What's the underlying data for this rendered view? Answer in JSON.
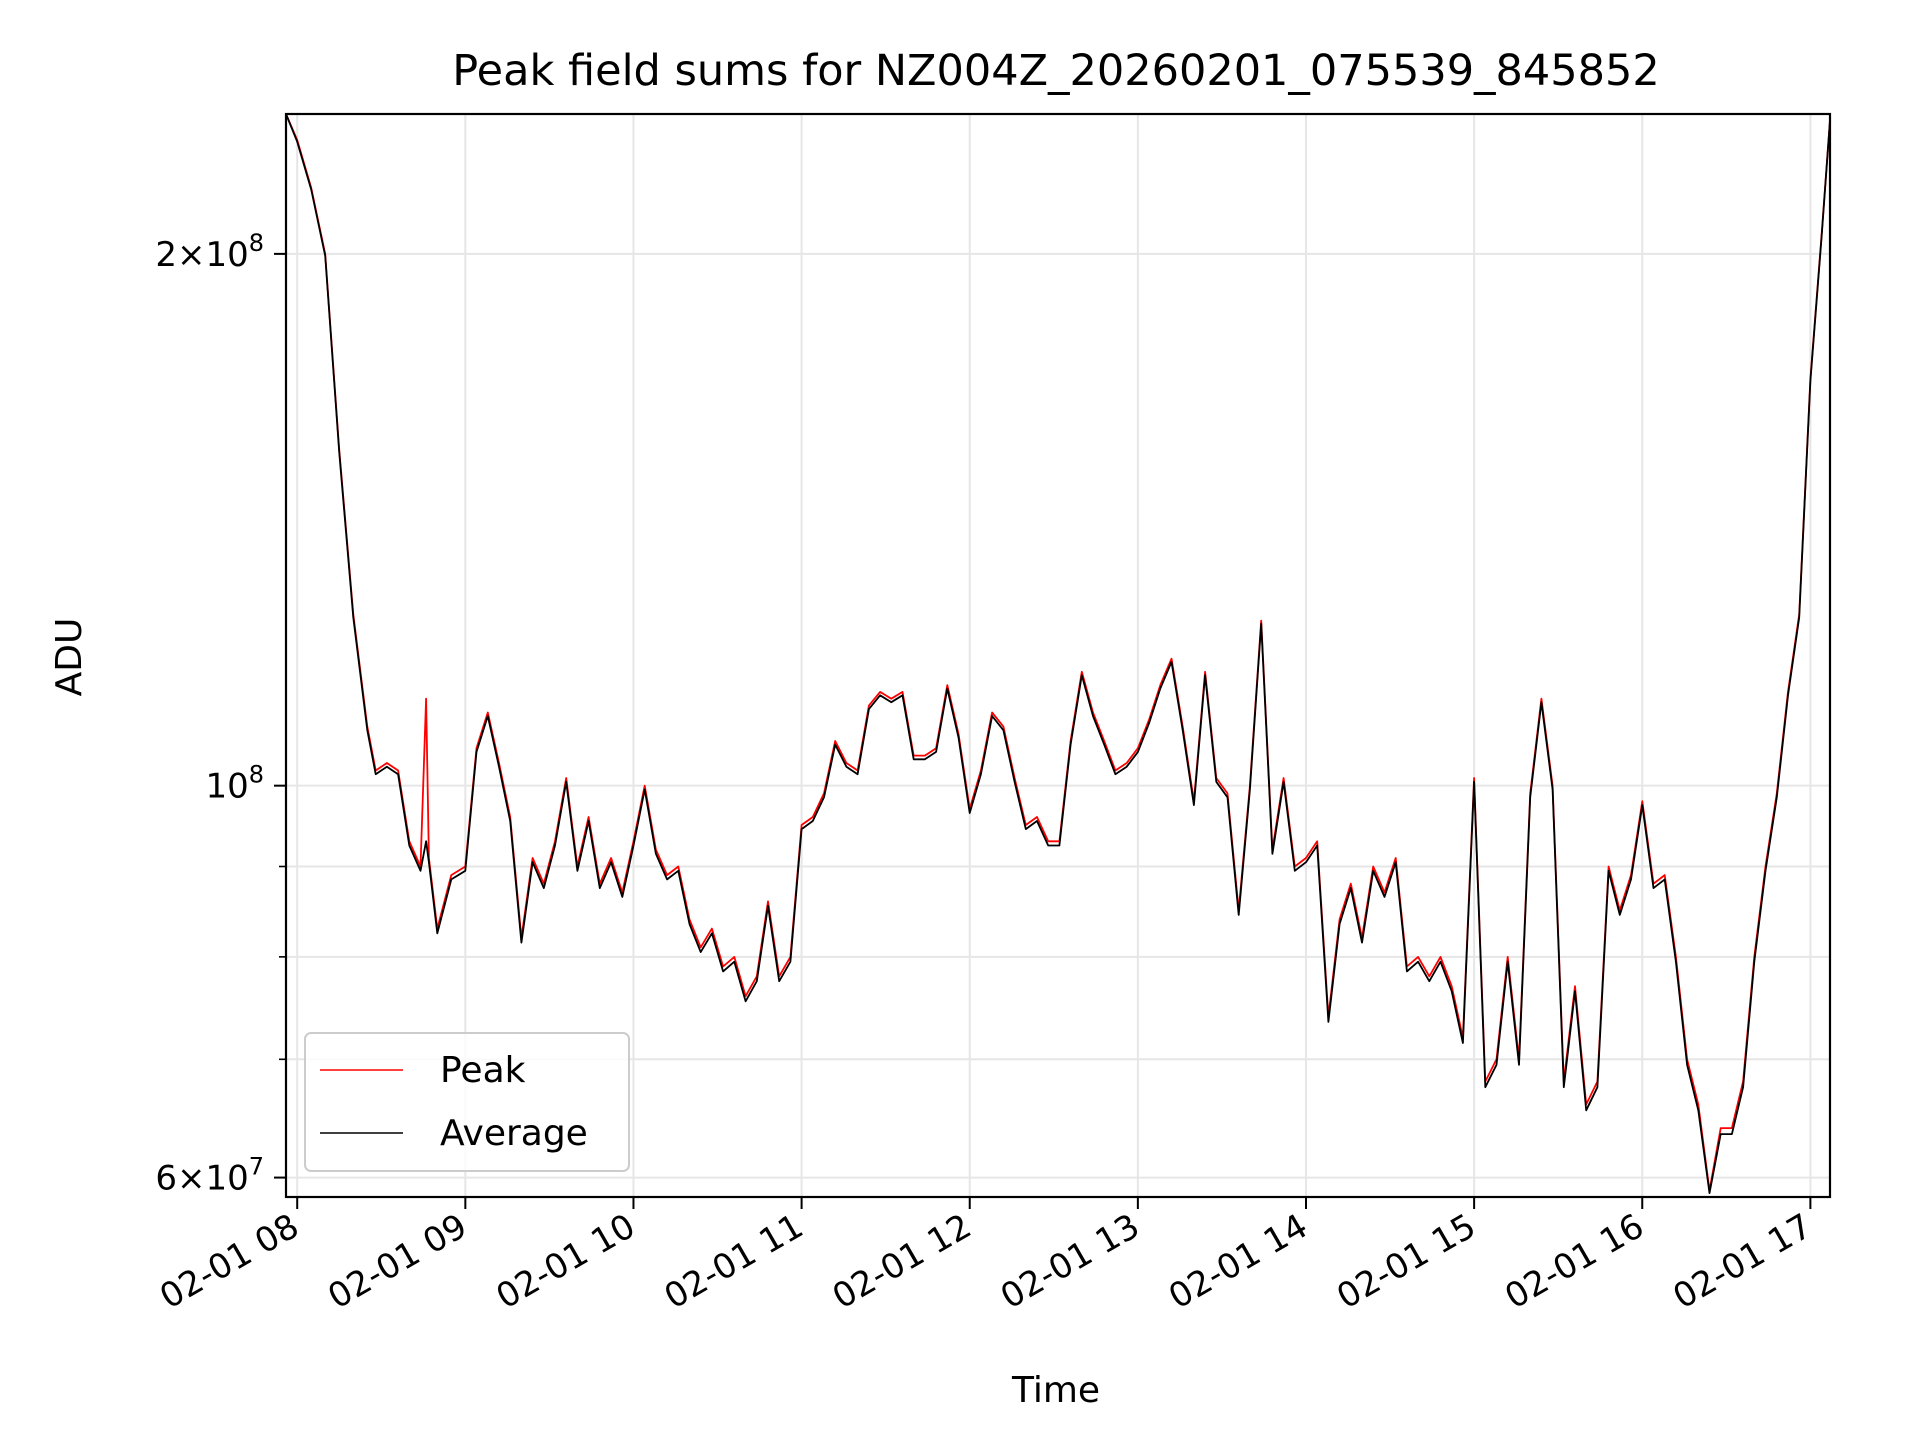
{
  "chart_data": {
    "type": "line",
    "title": "Peak field sums for NZ004Z_20260201_075539_845852",
    "xlabel": "Time",
    "ylabel": "ADU",
    "yscale": "log",
    "xlim": [
      "02-01 07:56",
      "02-01 17:07"
    ],
    "ylim": [
      58500000,
      240000000
    ],
    "x_ticks": [
      "02-01 08",
      "02-01 09",
      "02-01 10",
      "02-01 11",
      "02-01 12",
      "02-01 13",
      "02-01 14",
      "02-01 15",
      "02-01 16",
      "02-01 17"
    ],
    "y_ticks": [
      {
        "value": 60000000,
        "base": "6",
        "exp": "7"
      },
      {
        "value": 100000000,
        "base": "",
        "exp": "8"
      },
      {
        "value": 200000000,
        "base": "2",
        "exp": "8"
      }
    ],
    "y_minor_ticks": [
      70000000,
      80000000,
      90000000
    ],
    "grid": true,
    "legend": "lower-left",
    "colors": {
      "peak": "#ff0000",
      "average": "#000000",
      "grid": "#e6e6e6"
    },
    "series": [
      {
        "name": "Peak",
        "key": "peak",
        "x": [
          "02-01 07:56",
          "02-01 08:00",
          "02-01 08:05",
          "02-01 08:10",
          "02-01 08:15",
          "02-01 08:20",
          "02-01 08:25",
          "02-01 08:28",
          "02-01 08:32",
          "02-01 08:36",
          "02-01 08:40",
          "02-01 08:44",
          "02-01 08:46",
          "02-01 08:47",
          "02-01 08:50",
          "02-01 08:55",
          "02-01 09:00",
          "02-01 09:04",
          "02-01 09:08",
          "02-01 09:12",
          "02-01 09:16",
          "02-01 09:20",
          "02-01 09:24",
          "02-01 09:28",
          "02-01 09:32",
          "02-01 09:36",
          "02-01 09:40",
          "02-01 09:44",
          "02-01 09:48",
          "02-01 09:52",
          "02-01 09:56",
          "02-01 10:00",
          "02-01 10:04",
          "02-01 10:08",
          "02-01 10:12",
          "02-01 10:16",
          "02-01 10:20",
          "02-01 10:24",
          "02-01 10:28",
          "02-01 10:32",
          "02-01 10:36",
          "02-01 10:40",
          "02-01 10:44",
          "02-01 10:48",
          "02-01 10:52",
          "02-01 10:56",
          "02-01 11:00",
          "02-01 11:04",
          "02-01 11:08",
          "02-01 11:12",
          "02-01 11:16",
          "02-01 11:20",
          "02-01 11:24",
          "02-01 11:28",
          "02-01 11:32",
          "02-01 11:36",
          "02-01 11:40",
          "02-01 11:44",
          "02-01 11:48",
          "02-01 11:52",
          "02-01 11:56",
          "02-01 12:00",
          "02-01 12:04",
          "02-01 12:08",
          "02-01 12:12",
          "02-01 12:16",
          "02-01 12:20",
          "02-01 12:24",
          "02-01 12:28",
          "02-01 12:32",
          "02-01 12:36",
          "02-01 12:40",
          "02-01 12:44",
          "02-01 12:48",
          "02-01 12:52",
          "02-01 12:56",
          "02-01 13:00",
          "02-01 13:04",
          "02-01 13:08",
          "02-01 13:12",
          "02-01 13:16",
          "02-01 13:20",
          "02-01 13:24",
          "02-01 13:28",
          "02-01 13:32",
          "02-01 13:36",
          "02-01 13:40",
          "02-01 13:44",
          "02-01 13:48",
          "02-01 13:52",
          "02-01 13:56",
          "02-01 14:00",
          "02-01 14:04",
          "02-01 14:08",
          "02-01 14:12",
          "02-01 14:16",
          "02-01 14:20",
          "02-01 14:24",
          "02-01 14:28",
          "02-01 14:32",
          "02-01 14:36",
          "02-01 14:40",
          "02-01 14:44",
          "02-01 14:48",
          "02-01 14:52",
          "02-01 14:56",
          "02-01 15:00",
          "02-01 15:04",
          "02-01 15:08",
          "02-01 15:12",
          "02-01 15:16",
          "02-01 15:20",
          "02-01 15:24",
          "02-01 15:28",
          "02-01 15:32",
          "02-01 15:36",
          "02-01 15:40",
          "02-01 15:44",
          "02-01 15:48",
          "02-01 15:52",
          "02-01 15:56",
          "02-01 16:00",
          "02-01 16:04",
          "02-01 16:08",
          "02-01 16:12",
          "02-01 16:16",
          "02-01 16:20",
          "02-01 16:24",
          "02-01 16:28",
          "02-01 16:32",
          "02-01 16:36",
          "02-01 16:40",
          "02-01 16:44",
          "02-01 16:48",
          "02-01 16:52",
          "02-01 16:56",
          "02-01 17:00",
          "02-01 17:04",
          "02-01 17:07"
        ],
        "y": [
          240000000,
          232000000,
          218000000,
          200000000,
          155000000,
          125000000,
          108000000,
          102000000,
          103000000,
          102000000,
          93000000,
          90000000,
          112000000,
          91000000,
          83000000,
          89000000,
          90000000,
          105000000,
          110000000,
          103000000,
          96000000,
          82000000,
          91000000,
          88000000,
          93000000,
          101000000,
          90000000,
          96000000,
          88000000,
          91000000,
          87000000,
          93000000,
          100000000,
          92000000,
          89000000,
          90000000,
          84000000,
          81000000,
          83000000,
          79000000,
          80000000,
          76000000,
          78000000,
          86000000,
          78000000,
          80000000,
          95000000,
          96000000,
          99000000,
          106000000,
          103000000,
          102000000,
          111000000,
          113000000,
          112000000,
          113000000,
          104000000,
          104000000,
          105000000,
          114000000,
          107000000,
          97000000,
          102000000,
          110000000,
          108000000,
          101000000,
          95000000,
          96000000,
          93000000,
          93000000,
          106000000,
          116000000,
          110000000,
          106000000,
          102000000,
          103000000,
          105000000,
          109000000,
          114000000,
          118000000,
          108000000,
          98000000,
          116000000,
          101000000,
          99000000,
          85000000,
          100000000,
          124000000,
          92000000,
          101000000,
          90000000,
          91000000,
          93000000,
          74000000,
          84000000,
          88000000,
          82000000,
          90000000,
          87000000,
          91000000,
          79000000,
          80000000,
          78000000,
          80000000,
          77000000,
          72000000,
          101000000,
          68000000,
          70000000,
          80000000,
          70000000,
          99000000,
          112000000,
          100000000,
          68000000,
          77000000,
          66000000,
          68000000,
          90000000,
          85000000,
          89000000,
          98000000,
          88000000,
          89000000,
          80000000,
          70000000,
          66000000,
          59000000,
          64000000,
          64000000,
          68000000,
          80000000,
          90000000,
          99000000,
          113000000,
          125000000,
          170000000,
          205000000,
          238000000
        ]
      },
      {
        "name": "Average",
        "key": "average",
        "x": [
          "02-01 07:56",
          "02-01 08:00",
          "02-01 08:05",
          "02-01 08:10",
          "02-01 08:15",
          "02-01 08:20",
          "02-01 08:25",
          "02-01 08:28",
          "02-01 08:32",
          "02-01 08:36",
          "02-01 08:40",
          "02-01 08:44",
          "02-01 08:46",
          "02-01 08:47",
          "02-01 08:50",
          "02-01 08:55",
          "02-01 09:00",
          "02-01 09:04",
          "02-01 09:08",
          "02-01 09:12",
          "02-01 09:16",
          "02-01 09:20",
          "02-01 09:24",
          "02-01 09:28",
          "02-01 09:32",
          "02-01 09:36",
          "02-01 09:40",
          "02-01 09:44",
          "02-01 09:48",
          "02-01 09:52",
          "02-01 09:56",
          "02-01 10:00",
          "02-01 10:04",
          "02-01 10:08",
          "02-01 10:12",
          "02-01 10:16",
          "02-01 10:20",
          "02-01 10:24",
          "02-01 10:28",
          "02-01 10:32",
          "02-01 10:36",
          "02-01 10:40",
          "02-01 10:44",
          "02-01 10:48",
          "02-01 10:52",
          "02-01 10:56",
          "02-01 11:00",
          "02-01 11:04",
          "02-01 11:08",
          "02-01 11:12",
          "02-01 11:16",
          "02-01 11:20",
          "02-01 11:24",
          "02-01 11:28",
          "02-01 11:32",
          "02-01 11:36",
          "02-01 11:40",
          "02-01 11:44",
          "02-01 11:48",
          "02-01 11:52",
          "02-01 11:56",
          "02-01 12:00",
          "02-01 12:04",
          "02-01 12:08",
          "02-01 12:12",
          "02-01 12:16",
          "02-01 12:20",
          "02-01 12:24",
          "02-01 12:28",
          "02-01 12:32",
          "02-01 12:36",
          "02-01 12:40",
          "02-01 12:44",
          "02-01 12:48",
          "02-01 12:52",
          "02-01 12:56",
          "02-01 13:00",
          "02-01 13:04",
          "02-01 13:08",
          "02-01 13:12",
          "02-01 13:16",
          "02-01 13:20",
          "02-01 13:24",
          "02-01 13:28",
          "02-01 13:32",
          "02-01 13:36",
          "02-01 13:40",
          "02-01 13:44",
          "02-01 13:48",
          "02-01 13:52",
          "02-01 13:56",
          "02-01 14:00",
          "02-01 14:04",
          "02-01 14:08",
          "02-01 14:12",
          "02-01 14:16",
          "02-01 14:20",
          "02-01 14:24",
          "02-01 14:28",
          "02-01 14:32",
          "02-01 14:36",
          "02-01 14:40",
          "02-01 14:44",
          "02-01 14:48",
          "02-01 14:52",
          "02-01 14:56",
          "02-01 15:00",
          "02-01 15:04",
          "02-01 15:08",
          "02-01 15:12",
          "02-01 15:16",
          "02-01 15:20",
          "02-01 15:24",
          "02-01 15:28",
          "02-01 15:32",
          "02-01 15:36",
          "02-01 15:40",
          "02-01 15:44",
          "02-01 15:48",
          "02-01 15:52",
          "02-01 15:56",
          "02-01 16:00",
          "02-01 16:04",
          "02-01 16:08",
          "02-01 16:12",
          "02-01 16:16",
          "02-01 16:20",
          "02-01 16:24",
          "02-01 16:28",
          "02-01 16:32",
          "02-01 16:36",
          "02-01 16:40",
          "02-01 16:44",
          "02-01 16:48",
          "02-01 16:52",
          "02-01 16:56",
          "02-01 17:00",
          "02-01 17:04",
          "02-01 17:07"
        ],
        "y": [
          240000000,
          231500000,
          217500000,
          199500000,
          154500000,
          124500000,
          107500000,
          101500000,
          102500000,
          101500000,
          92500000,
          89500000,
          93000000,
          90500000,
          82500000,
          88500000,
          89500000,
          104500000,
          109500000,
          102500000,
          95500000,
          81500000,
          90500000,
          87500000,
          92500000,
          100500000,
          89500000,
          95500000,
          87500000,
          90500000,
          86500000,
          92500000,
          99500000,
          91500000,
          88500000,
          89500000,
          83500000,
          80500000,
          82500000,
          78500000,
          79500000,
          75500000,
          77500000,
          85500000,
          77500000,
          79500000,
          94500000,
          95500000,
          98500000,
          105500000,
          102500000,
          101500000,
          110500000,
          112500000,
          111500000,
          112500000,
          103500000,
          103500000,
          104500000,
          113500000,
          106500000,
          96500000,
          101500000,
          109500000,
          107500000,
          100500000,
          94500000,
          95500000,
          92500000,
          92500000,
          105500000,
          115500000,
          109500000,
          105500000,
          101500000,
          102500000,
          104500000,
          108500000,
          113500000,
          117500000,
          107500000,
          97500000,
          115500000,
          100500000,
          98500000,
          84500000,
          99500000,
          123500000,
          91500000,
          100500000,
          89500000,
          90500000,
          92500000,
          73500000,
          83500000,
          87500000,
          81500000,
          89500000,
          86500000,
          90500000,
          78500000,
          79500000,
          77500000,
          79500000,
          76500000,
          71500000,
          100500000,
          67500000,
          69500000,
          79500000,
          69500000,
          98500000,
          111500000,
          99500000,
          67500000,
          76500000,
          65500000,
          67500000,
          89500000,
          84500000,
          88500000,
          97500000,
          87500000,
          88500000,
          79500000,
          69500000,
          65500000,
          58800000,
          63500000,
          63500000,
          67500000,
          79500000,
          89500000,
          98500000,
          112500000,
          124500000,
          169500000,
          204500000,
          238000000
        ]
      }
    ]
  }
}
